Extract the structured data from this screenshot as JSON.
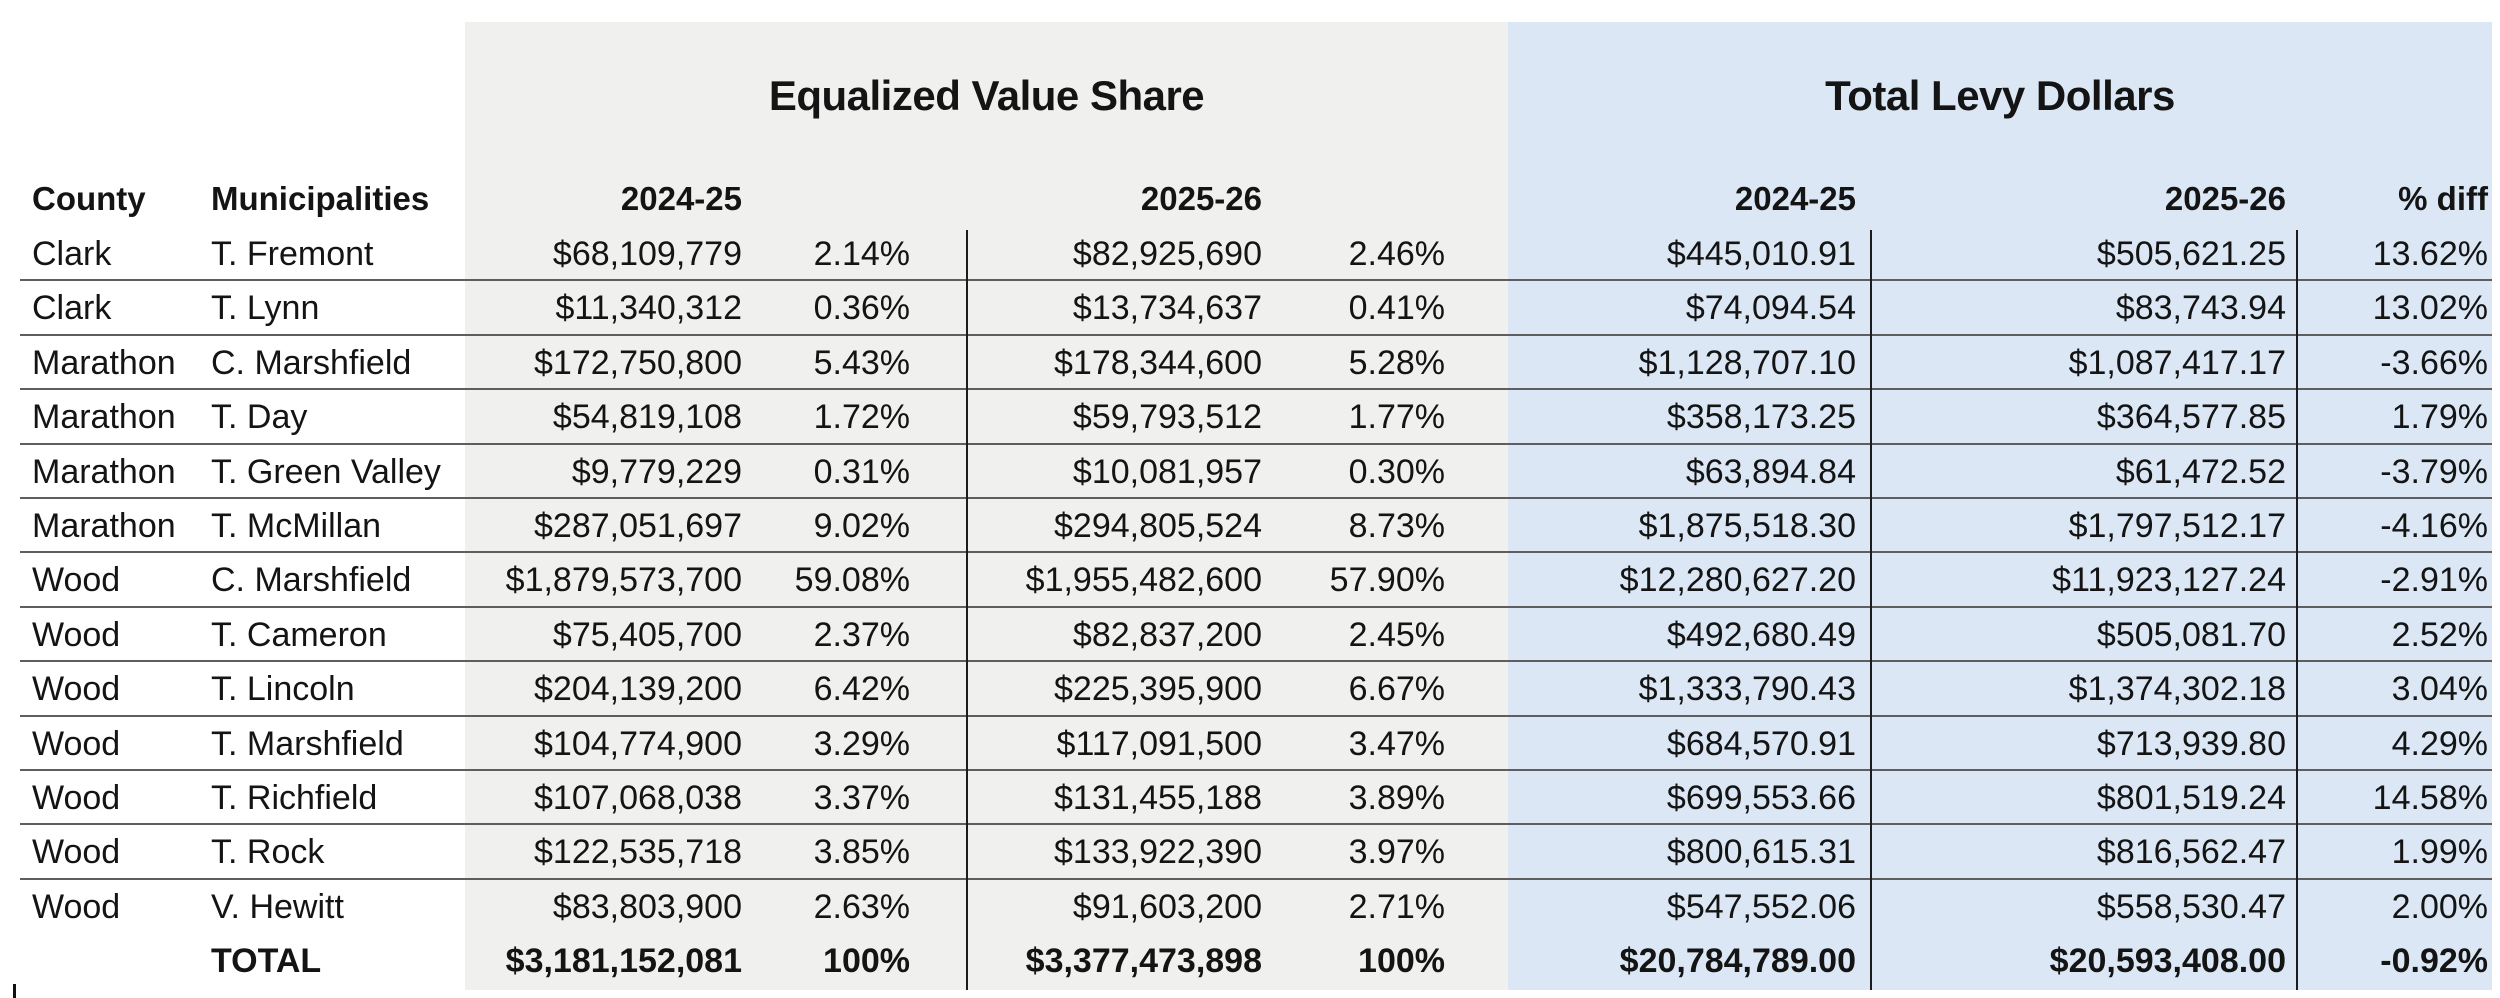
{
  "table": {
    "section_headers": {
      "equalized_value": "Equalized Value Share",
      "total_levy": "Total Levy Dollars"
    },
    "columns": {
      "county": "County",
      "municipalities": "Municipalities",
      "ev_2024": "2024-25",
      "ev_2025": "2025-26",
      "levy_2024": "2024-25",
      "levy_2025": "2025-26",
      "pct_diff": "% diff"
    },
    "rows": [
      {
        "county": "Clark",
        "municipality": "T. Fremont",
        "ev_2024_value": "$68,109,779",
        "ev_2024_share": "2.14%",
        "ev_2025_value": "$82,925,690",
        "ev_2025_share": "2.46%",
        "levy_2024": "$445,010.91",
        "levy_2025": "$505,621.25",
        "pct_diff": "13.62%"
      },
      {
        "county": "Clark",
        "municipality": "T. Lynn",
        "ev_2024_value": "$11,340,312",
        "ev_2024_share": "0.36%",
        "ev_2025_value": "$13,734,637",
        "ev_2025_share": "0.41%",
        "levy_2024": "$74,094.54",
        "levy_2025": "$83,743.94",
        "pct_diff": "13.02%"
      },
      {
        "county": "Marathon",
        "municipality": "C. Marshfield",
        "ev_2024_value": "$172,750,800",
        "ev_2024_share": "5.43%",
        "ev_2025_value": "$178,344,600",
        "ev_2025_share": "5.28%",
        "levy_2024": "$1,128,707.10",
        "levy_2025": "$1,087,417.17",
        "pct_diff": "-3.66%"
      },
      {
        "county": "Marathon",
        "municipality": "T. Day",
        "ev_2024_value": "$54,819,108",
        "ev_2024_share": "1.72%",
        "ev_2025_value": "$59,793,512",
        "ev_2025_share": "1.77%",
        "levy_2024": "$358,173.25",
        "levy_2025": "$364,577.85",
        "pct_diff": "1.79%"
      },
      {
        "county": "Marathon",
        "municipality": "T. Green Valley",
        "ev_2024_value": "$9,779,229",
        "ev_2024_share": "0.31%",
        "ev_2025_value": "$10,081,957",
        "ev_2025_share": "0.30%",
        "levy_2024": "$63,894.84",
        "levy_2025": "$61,472.52",
        "pct_diff": "-3.79%"
      },
      {
        "county": "Marathon",
        "municipality": "T. McMillan",
        "ev_2024_value": "$287,051,697",
        "ev_2024_share": "9.02%",
        "ev_2025_value": "$294,805,524",
        "ev_2025_share": "8.73%",
        "levy_2024": "$1,875,518.30",
        "levy_2025": "$1,797,512.17",
        "pct_diff": "-4.16%"
      },
      {
        "county": "Wood",
        "municipality": "C. Marshfield",
        "ev_2024_value": "$1,879,573,700",
        "ev_2024_share": "59.08%",
        "ev_2025_value": "$1,955,482,600",
        "ev_2025_share": "57.90%",
        "levy_2024": "$12,280,627.20",
        "levy_2025": "$11,923,127.24",
        "pct_diff": "-2.91%"
      },
      {
        "county": "Wood",
        "municipality": "T. Cameron",
        "ev_2024_value": "$75,405,700",
        "ev_2024_share": "2.37%",
        "ev_2025_value": "$82,837,200",
        "ev_2025_share": "2.45%",
        "levy_2024": "$492,680.49",
        "levy_2025": "$505,081.70",
        "pct_diff": "2.52%"
      },
      {
        "county": "Wood",
        "municipality": "T. Lincoln",
        "ev_2024_value": "$204,139,200",
        "ev_2024_share": "6.42%",
        "ev_2025_value": "$225,395,900",
        "ev_2025_share": "6.67%",
        "levy_2024": "$1,333,790.43",
        "levy_2025": "$1,374,302.18",
        "pct_diff": "3.04%"
      },
      {
        "county": "Wood",
        "municipality": "T. Marshfield",
        "ev_2024_value": "$104,774,900",
        "ev_2024_share": "3.29%",
        "ev_2025_value": "$117,091,500",
        "ev_2025_share": "3.47%",
        "levy_2024": "$684,570.91",
        "levy_2025": "$713,939.80",
        "pct_diff": "4.29%"
      },
      {
        "county": "Wood",
        "municipality": "T. Richfield",
        "ev_2024_value": "$107,068,038",
        "ev_2024_share": "3.37%",
        "ev_2025_value": "$131,455,188",
        "ev_2025_share": "3.89%",
        "levy_2024": "$699,553.66",
        "levy_2025": "$801,519.24",
        "pct_diff": "14.58%"
      },
      {
        "county": "Wood",
        "municipality": "T. Rock",
        "ev_2024_value": "$122,535,718",
        "ev_2024_share": "3.85%",
        "ev_2025_value": "$133,922,390",
        "ev_2025_share": "3.97%",
        "levy_2024": "$800,615.31",
        "levy_2025": "$816,562.47",
        "pct_diff": "1.99%"
      },
      {
        "county": "Wood",
        "municipality": "V. Hewitt",
        "ev_2024_value": "$83,803,900",
        "ev_2024_share": "2.63%",
        "ev_2025_value": "$91,603,200",
        "ev_2025_share": "2.71%",
        "levy_2024": "$547,552.06",
        "levy_2025": "$558,530.47",
        "pct_diff": "2.00%"
      }
    ],
    "total": {
      "municipality": "TOTAL",
      "ev_2024_value": "$3,181,152,081",
      "ev_2024_share": "100%",
      "ev_2025_value": "$3,377,473,898",
      "ev_2025_share": "100%",
      "levy_2024": "$20,784,789.00",
      "levy_2025": "$20,593,408.00",
      "pct_diff": "-0.92%"
    }
  },
  "colors": {
    "equalized_value_panel_bg": "#f0f0ef",
    "total_levy_panel_bg": "#dbe7f5",
    "row_divider": "#5e5e5e",
    "column_divider": "#1c1c1c",
    "text": "#141414",
    "page_bg": "#ffffff"
  }
}
